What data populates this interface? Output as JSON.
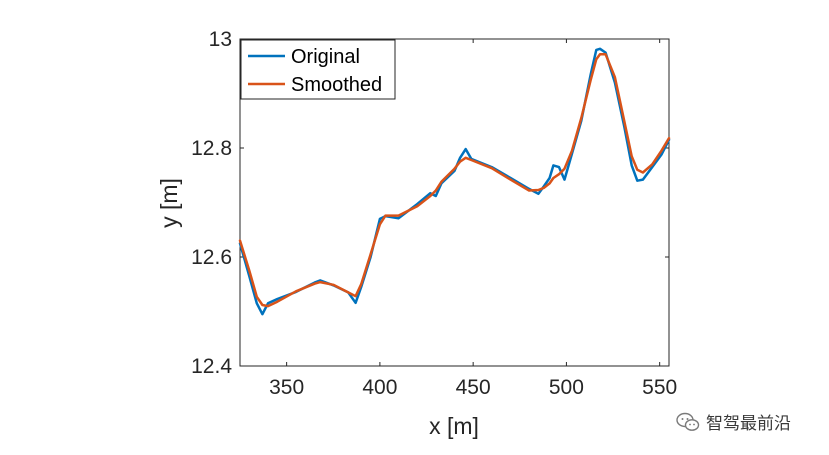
{
  "chart_data": {
    "type": "line",
    "xlabel": "x [m]",
    "ylabel": "y [m]",
    "xlim": [
      325,
      555
    ],
    "ylim": [
      12.4,
      13.0
    ],
    "xticks": [
      350,
      400,
      450,
      500,
      550
    ],
    "yticks": [
      12.4,
      12.6,
      12.8,
      13.0
    ],
    "ytick_labels": [
      "12.4",
      "12.6",
      "12.8",
      "13"
    ],
    "grid": false,
    "legend_position": "top-left",
    "series": [
      {
        "name": "Original",
        "color": "#0072BD",
        "points": [
          [
            325,
            12.625
          ],
          [
            330,
            12.565
          ],
          [
            334,
            12.515
          ],
          [
            337,
            12.495
          ],
          [
            340,
            12.515
          ],
          [
            345,
            12.523
          ],
          [
            355,
            12.536
          ],
          [
            365,
            12.553
          ],
          [
            368,
            12.557
          ],
          [
            375,
            12.548
          ],
          [
            383,
            12.535
          ],
          [
            387,
            12.516
          ],
          [
            390,
            12.545
          ],
          [
            395,
            12.6
          ],
          [
            400,
            12.67
          ],
          [
            403,
            12.675
          ],
          [
            410,
            12.671
          ],
          [
            420,
            12.697
          ],
          [
            427,
            12.717
          ],
          [
            430,
            12.712
          ],
          [
            433,
            12.735
          ],
          [
            440,
            12.758
          ],
          [
            443,
            12.782
          ],
          [
            446,
            12.798
          ],
          [
            449,
            12.78
          ],
          [
            460,
            12.765
          ],
          [
            470,
            12.745
          ],
          [
            480,
            12.725
          ],
          [
            485,
            12.716
          ],
          [
            488,
            12.73
          ],
          [
            491,
            12.745
          ],
          [
            493,
            12.768
          ],
          [
            496,
            12.765
          ],
          [
            499,
            12.742
          ],
          [
            503,
            12.79
          ],
          [
            508,
            12.85
          ],
          [
            513,
            12.935
          ],
          [
            516,
            12.98
          ],
          [
            518,
            12.982
          ],
          [
            521,
            12.975
          ],
          [
            526,
            12.92
          ],
          [
            531,
            12.84
          ],
          [
            535,
            12.768
          ],
          [
            538,
            12.74
          ],
          [
            541,
            12.742
          ],
          [
            546,
            12.765
          ],
          [
            551,
            12.788
          ],
          [
            555,
            12.815
          ]
        ]
      },
      {
        "name": "Smoothed",
        "color": "#D95319",
        "points": [
          [
            325,
            12.63
          ],
          [
            330,
            12.575
          ],
          [
            334,
            12.527
          ],
          [
            337,
            12.512
          ],
          [
            340,
            12.51
          ],
          [
            345,
            12.518
          ],
          [
            355,
            12.537
          ],
          [
            365,
            12.551
          ],
          [
            368,
            12.554
          ],
          [
            375,
            12.549
          ],
          [
            383,
            12.535
          ],
          [
            387,
            12.528
          ],
          [
            390,
            12.55
          ],
          [
            395,
            12.605
          ],
          [
            400,
            12.66
          ],
          [
            403,
            12.676
          ],
          [
            410,
            12.676
          ],
          [
            420,
            12.693
          ],
          [
            427,
            12.712
          ],
          [
            430,
            12.722
          ],
          [
            433,
            12.738
          ],
          [
            440,
            12.762
          ],
          [
            443,
            12.775
          ],
          [
            446,
            12.782
          ],
          [
            449,
            12.778
          ],
          [
            460,
            12.763
          ],
          [
            470,
            12.742
          ],
          [
            480,
            12.722
          ],
          [
            485,
            12.723
          ],
          [
            488,
            12.727
          ],
          [
            491,
            12.735
          ],
          [
            493,
            12.745
          ],
          [
            496,
            12.752
          ],
          [
            499,
            12.762
          ],
          [
            503,
            12.795
          ],
          [
            508,
            12.855
          ],
          [
            513,
            12.925
          ],
          [
            516,
            12.963
          ],
          [
            518,
            12.972
          ],
          [
            521,
            12.972
          ],
          [
            526,
            12.93
          ],
          [
            531,
            12.85
          ],
          [
            535,
            12.785
          ],
          [
            538,
            12.76
          ],
          [
            541,
            12.755
          ],
          [
            546,
            12.77
          ],
          [
            551,
            12.795
          ],
          [
            555,
            12.818
          ]
        ]
      }
    ]
  },
  "watermark": {
    "text": "智驾最前沿",
    "icon": "wechat-icon"
  }
}
